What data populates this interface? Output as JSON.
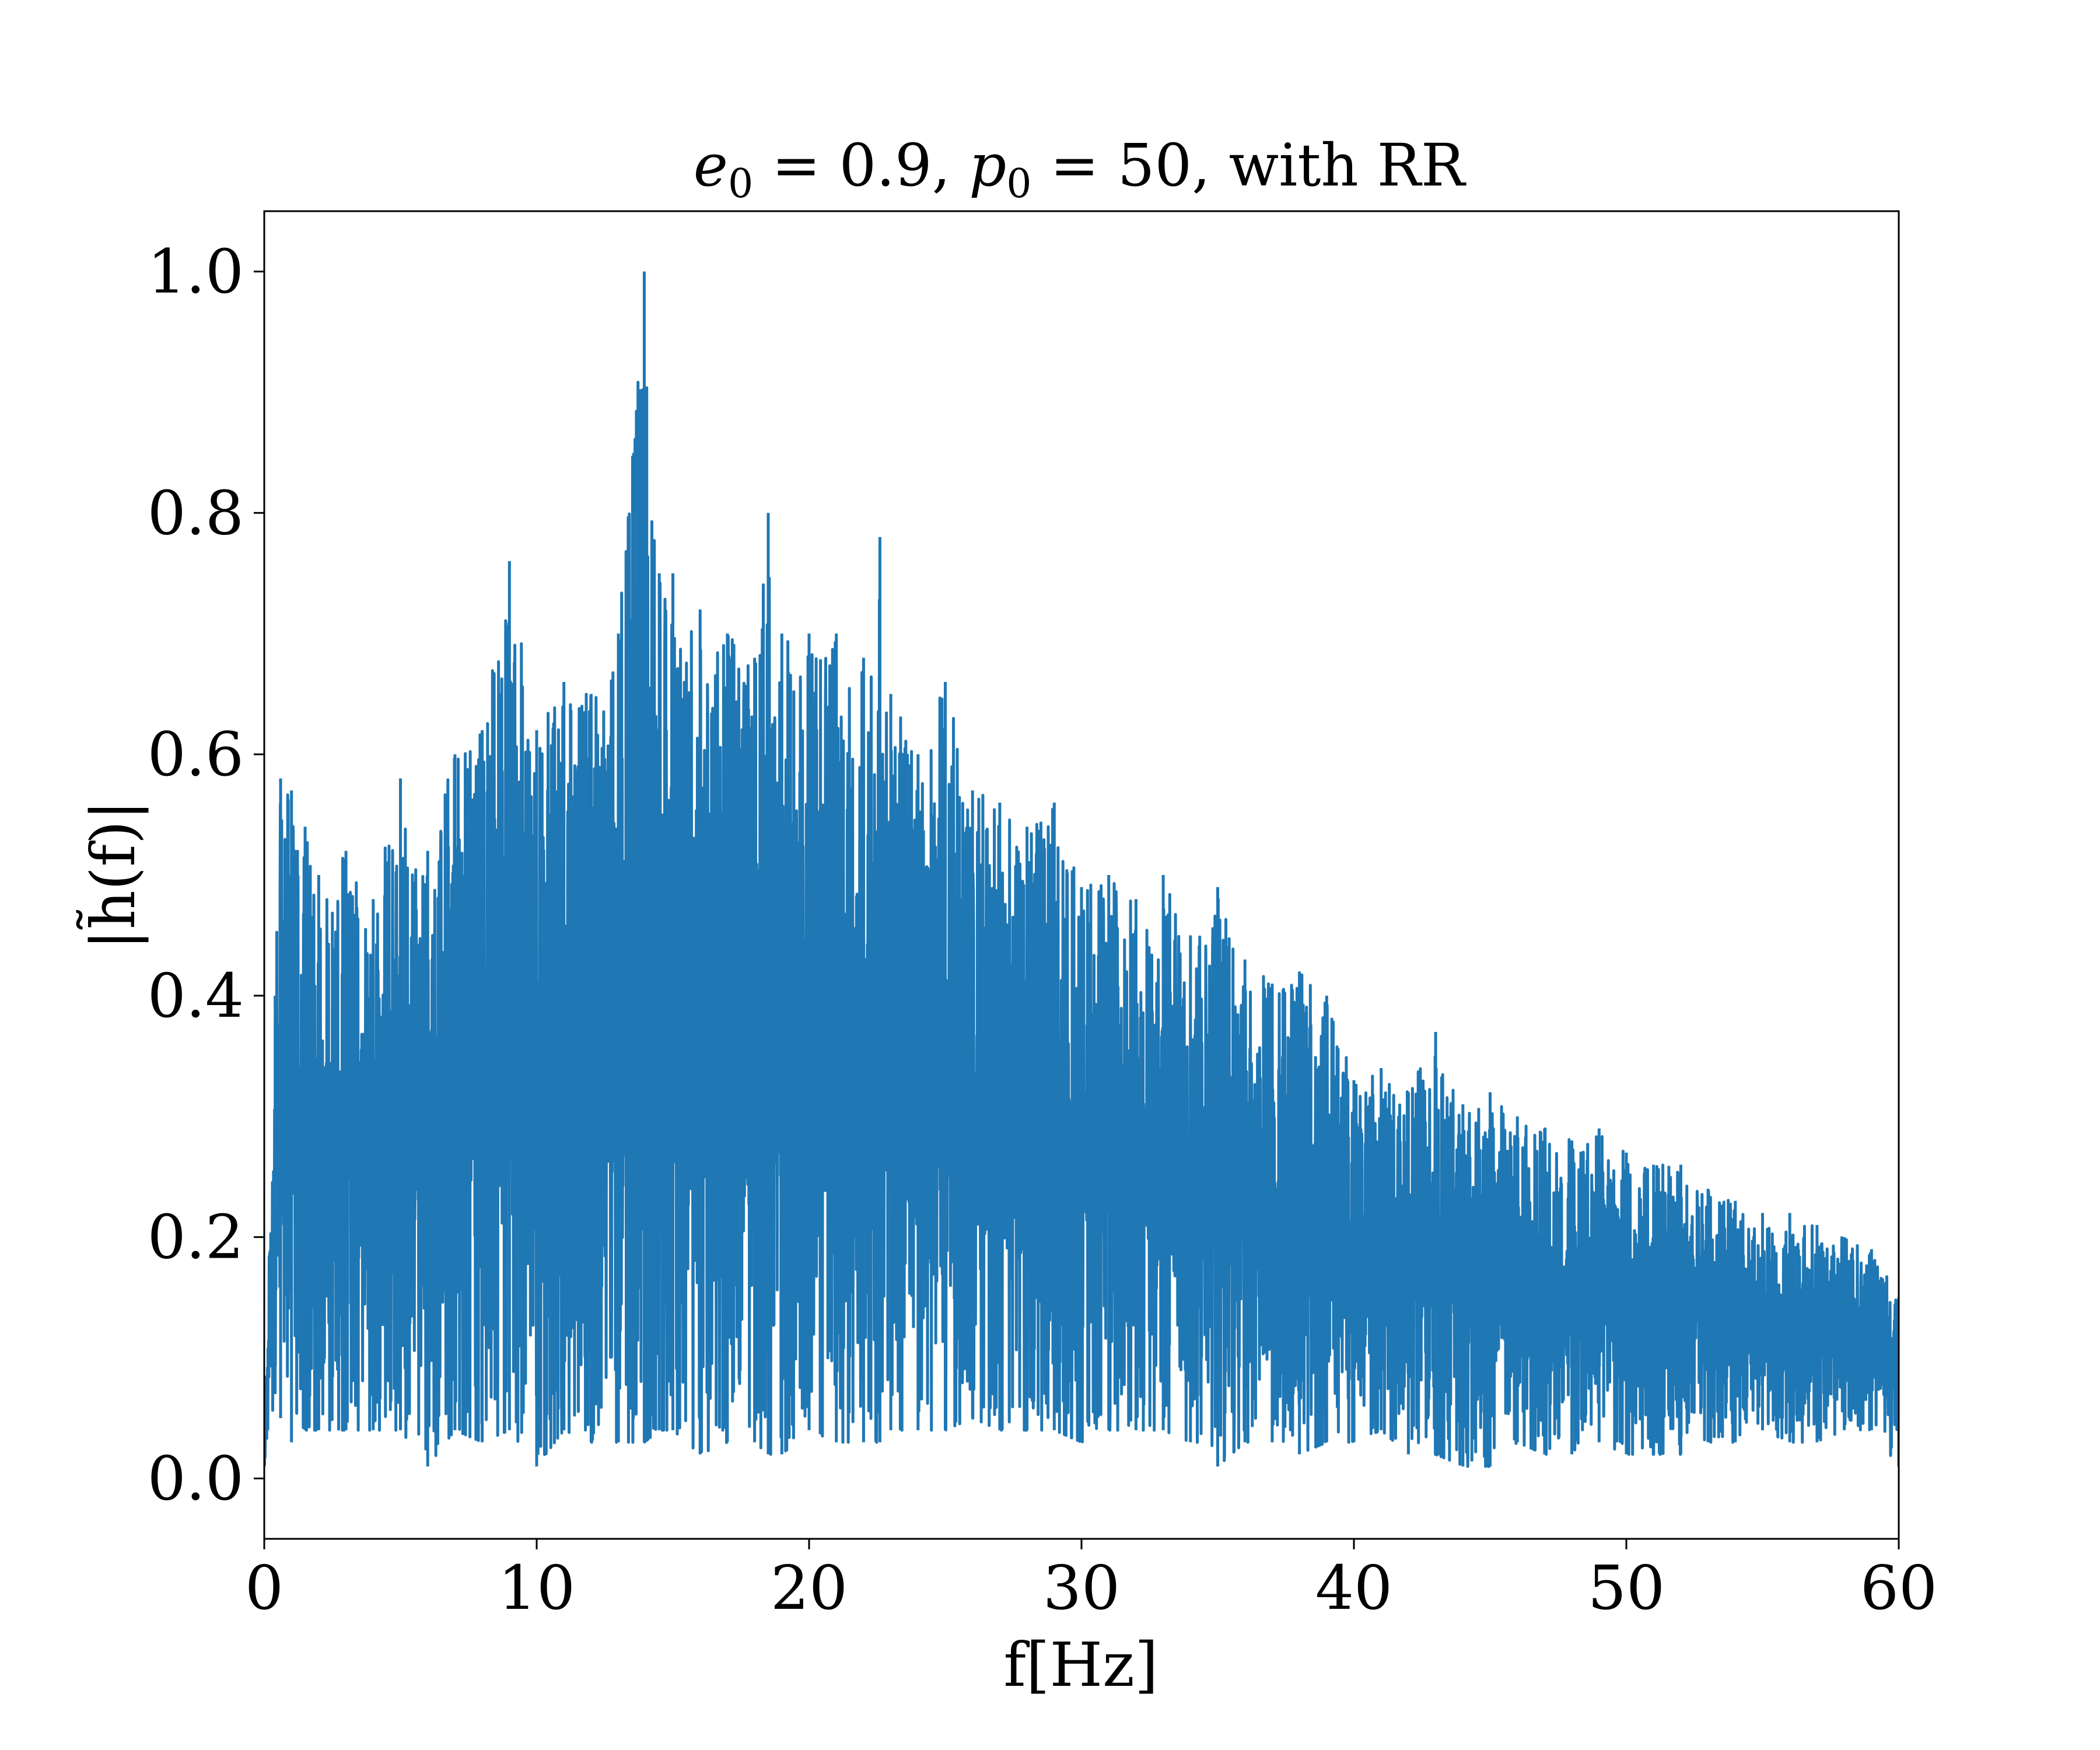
{
  "chart_data": {
    "type": "line",
    "title": {
      "e_sym": "e",
      "e_sub": "0",
      "e_val": " = 0.9, ",
      "p_sym": "p",
      "p_sub": "0",
      "p_val": " = 50, with RR"
    },
    "xlabel": "f[Hz]",
    "ylabel": "|h̃(f)|",
    "xlim": [
      0,
      60
    ],
    "ylim": [
      -0.05,
      1.05
    ],
    "xticks": [
      0,
      10,
      20,
      30,
      40,
      50,
      60
    ],
    "xtick_labels": [
      "0",
      "10",
      "20",
      "30",
      "40",
      "50",
      "60"
    ],
    "yticks": [
      0.0,
      0.2,
      0.4,
      0.6,
      0.8,
      1.0
    ],
    "ytick_labels": [
      "0.0",
      "0.2",
      "0.4",
      "0.6",
      "0.8",
      "1.0"
    ],
    "grid": false,
    "line_color": "#1f77b4",
    "series": [
      {
        "x": [
          0.0,
          0.4,
          0.6,
          1.0,
          1.5,
          2.0,
          3.0,
          4.0,
          5.0,
          6.0,
          7.0,
          8.0,
          9.0,
          10.0,
          11.0,
          12.0,
          13.0,
          13.95,
          14.5,
          15.0,
          16.0,
          17.0,
          18.0,
          18.5,
          19.0,
          20.0,
          21.0,
          22.0,
          22.6,
          23.0,
          24.0,
          25.0,
          26.0,
          27.0,
          28.0,
          29.0,
          30.0,
          31.0,
          32.0,
          33.0,
          34.0,
          35.0,
          36.0,
          37.0,
          38.0,
          39.0,
          40.0,
          41.0,
          42.0,
          43.0,
          44.0,
          45.0,
          46.0,
          47.0,
          48.0,
          49.0,
          50.0,
          51.0,
          52.0,
          53.0,
          54.0,
          55.0,
          56.0,
          57.0,
          58.0,
          59.0,
          60.0
        ],
        "upper": [
          0.02,
          0.4,
          0.58,
          0.57,
          0.54,
          0.5,
          0.52,
          0.48,
          0.58,
          0.52,
          0.6,
          0.62,
          0.76,
          0.62,
          0.66,
          0.65,
          0.7,
          1.0,
          0.75,
          0.75,
          0.72,
          0.7,
          0.68,
          0.8,
          0.7,
          0.7,
          0.7,
          0.68,
          0.78,
          0.65,
          0.6,
          0.66,
          0.57,
          0.56,
          0.54,
          0.56,
          0.49,
          0.5,
          0.48,
          0.5,
          0.45,
          0.49,
          0.43,
          0.41,
          0.42,
          0.4,
          0.33,
          0.34,
          0.32,
          0.37,
          0.31,
          0.32,
          0.3,
          0.29,
          0.28,
          0.29,
          0.27,
          0.26,
          0.26,
          0.24,
          0.23,
          0.22,
          0.22,
          0.21,
          0.2,
          0.19,
          0.15
        ],
        "lower": [
          0.01,
          0.07,
          0.05,
          0.03,
          0.04,
          0.04,
          0.04,
          0.04,
          0.04,
          0.01,
          0.04,
          0.03,
          0.04,
          0.01,
          0.04,
          0.03,
          0.03,
          0.03,
          0.04,
          0.04,
          0.02,
          0.03,
          0.03,
          0.02,
          0.02,
          0.04,
          0.03,
          0.03,
          0.03,
          0.04,
          0.04,
          0.04,
          0.05,
          0.04,
          0.04,
          0.04,
          0.03,
          0.04,
          0.04,
          0.04,
          0.03,
          0.01,
          0.03,
          0.03,
          0.02,
          0.03,
          0.03,
          0.04,
          0.02,
          0.02,
          0.01,
          0.01,
          0.03,
          0.02,
          0.02,
          0.03,
          0.02,
          0.02,
          0.02,
          0.03,
          0.03,
          0.04,
          0.03,
          0.03,
          0.04,
          0.04,
          0.01
        ]
      }
    ]
  }
}
